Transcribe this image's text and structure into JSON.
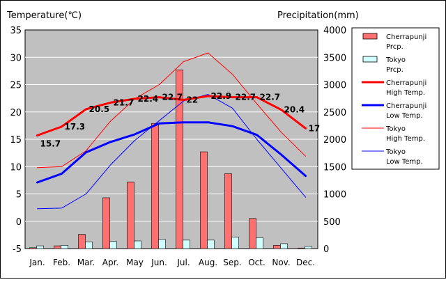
{
  "chart_data": {
    "type": "bar+line",
    "title": "",
    "y_left_label": "Temperature(℃)",
    "y_right_label": "Precipitation(mm)",
    "y_left_range": [
      -5,
      35
    ],
    "y_left_ticks": [
      "-5",
      "0",
      "5",
      "10",
      "15",
      "20",
      "25",
      "30",
      "35"
    ],
    "y_right_range": [
      0,
      4000
    ],
    "y_right_ticks": [
      "0",
      "500",
      "1000",
      "1500",
      "2000",
      "2500",
      "3000",
      "3500",
      "4000"
    ],
    "grid": true,
    "legend_position": "right",
    "categories": [
      "Jan.",
      "Feb.",
      "Mar.",
      "Apr.",
      "May",
      "Jun.",
      "Jul.",
      "Aug.",
      "Sep.",
      "Oct.",
      "Nov.",
      "Dec."
    ],
    "series": [
      {
        "name": "Cherrapunji Prcp.",
        "kind": "bar",
        "axis": "right",
        "color": "#ff7070",
        "values": [
          15,
          50,
          260,
          930,
          1220,
          2290,
          3270,
          1770,
          1370,
          550,
          60,
          10
        ]
      },
      {
        "name": "Tokyo Prcp.",
        "kind": "bar",
        "axis": "right",
        "color": "#d0ffff",
        "values": [
          50,
          60,
          120,
          130,
          140,
          165,
          155,
          155,
          210,
          200,
          90,
          40
        ]
      },
      {
        "name": "Cherrapunji High Temp.",
        "kind": "line",
        "axis": "left",
        "color": "#ff0000",
        "width": 3,
        "values": [
          15.7,
          17.3,
          20.5,
          21.7,
          22.4,
          22.7,
          22.2,
          22.9,
          22.7,
          22.7,
          20.4,
          17.0
        ],
        "labels": [
          "15.7",
          "17.3",
          "20.5",
          "21.7",
          "22.4",
          "22.7",
          "22",
          "22.9",
          "22.7",
          "22.7",
          "20.4",
          "17"
        ]
      },
      {
        "name": "Cherrapunji Low Temp.",
        "kind": "line",
        "axis": "left",
        "color": "#0000ff",
        "width": 3,
        "values": [
          7.1,
          8.7,
          12.6,
          14.5,
          15.9,
          17.9,
          18.1,
          18.1,
          17.4,
          15.8,
          12.2,
          8.3
        ]
      },
      {
        "name": "Tokyo High Temp.",
        "kind": "line",
        "axis": "left",
        "color": "#ff0000",
        "width": 1,
        "values": [
          9.8,
          10.0,
          12.9,
          18.3,
          22.4,
          25.0,
          29.2,
          30.8,
          26.9,
          21.5,
          16.3,
          11.9
        ]
      },
      {
        "name": "Tokyo Low Temp.",
        "kind": "line",
        "axis": "left",
        "color": "#0000ff",
        "width": 1,
        "values": [
          2.3,
          2.4,
          5.0,
          10.3,
          14.8,
          18.4,
          22.0,
          23.2,
          20.7,
          15.0,
          9.7,
          4.4
        ]
      }
    ],
    "legend": [
      {
        "line1": "Cherrapunji",
        "line2": "Prcp.",
        "swatch": "bar",
        "color": "#ff7070"
      },
      {
        "line1": "Tokyo",
        "line2": "Prcp.",
        "swatch": "bar",
        "color": "#d0ffff"
      },
      {
        "line1": "Cherrapunji",
        "line2": "High Temp.",
        "swatch": "line",
        "color": "#ff0000",
        "width": 3
      },
      {
        "line1": "Cherrapunji",
        "line2": "Low Temp.",
        "swatch": "line",
        "color": "#0000ff",
        "width": 3
      },
      {
        "line1": "Tokyo",
        "line2": "High Temp.",
        "swatch": "line",
        "color": "#ff0000",
        "width": 1
      },
      {
        "line1": "Tokyo",
        "line2": "Low Temp.",
        "swatch": "line",
        "color": "#0000ff",
        "width": 1
      }
    ],
    "colors": {
      "plot_background": "#c0c0c0",
      "gridline": "#ffffff",
      "bar_border": "#000000"
    }
  }
}
